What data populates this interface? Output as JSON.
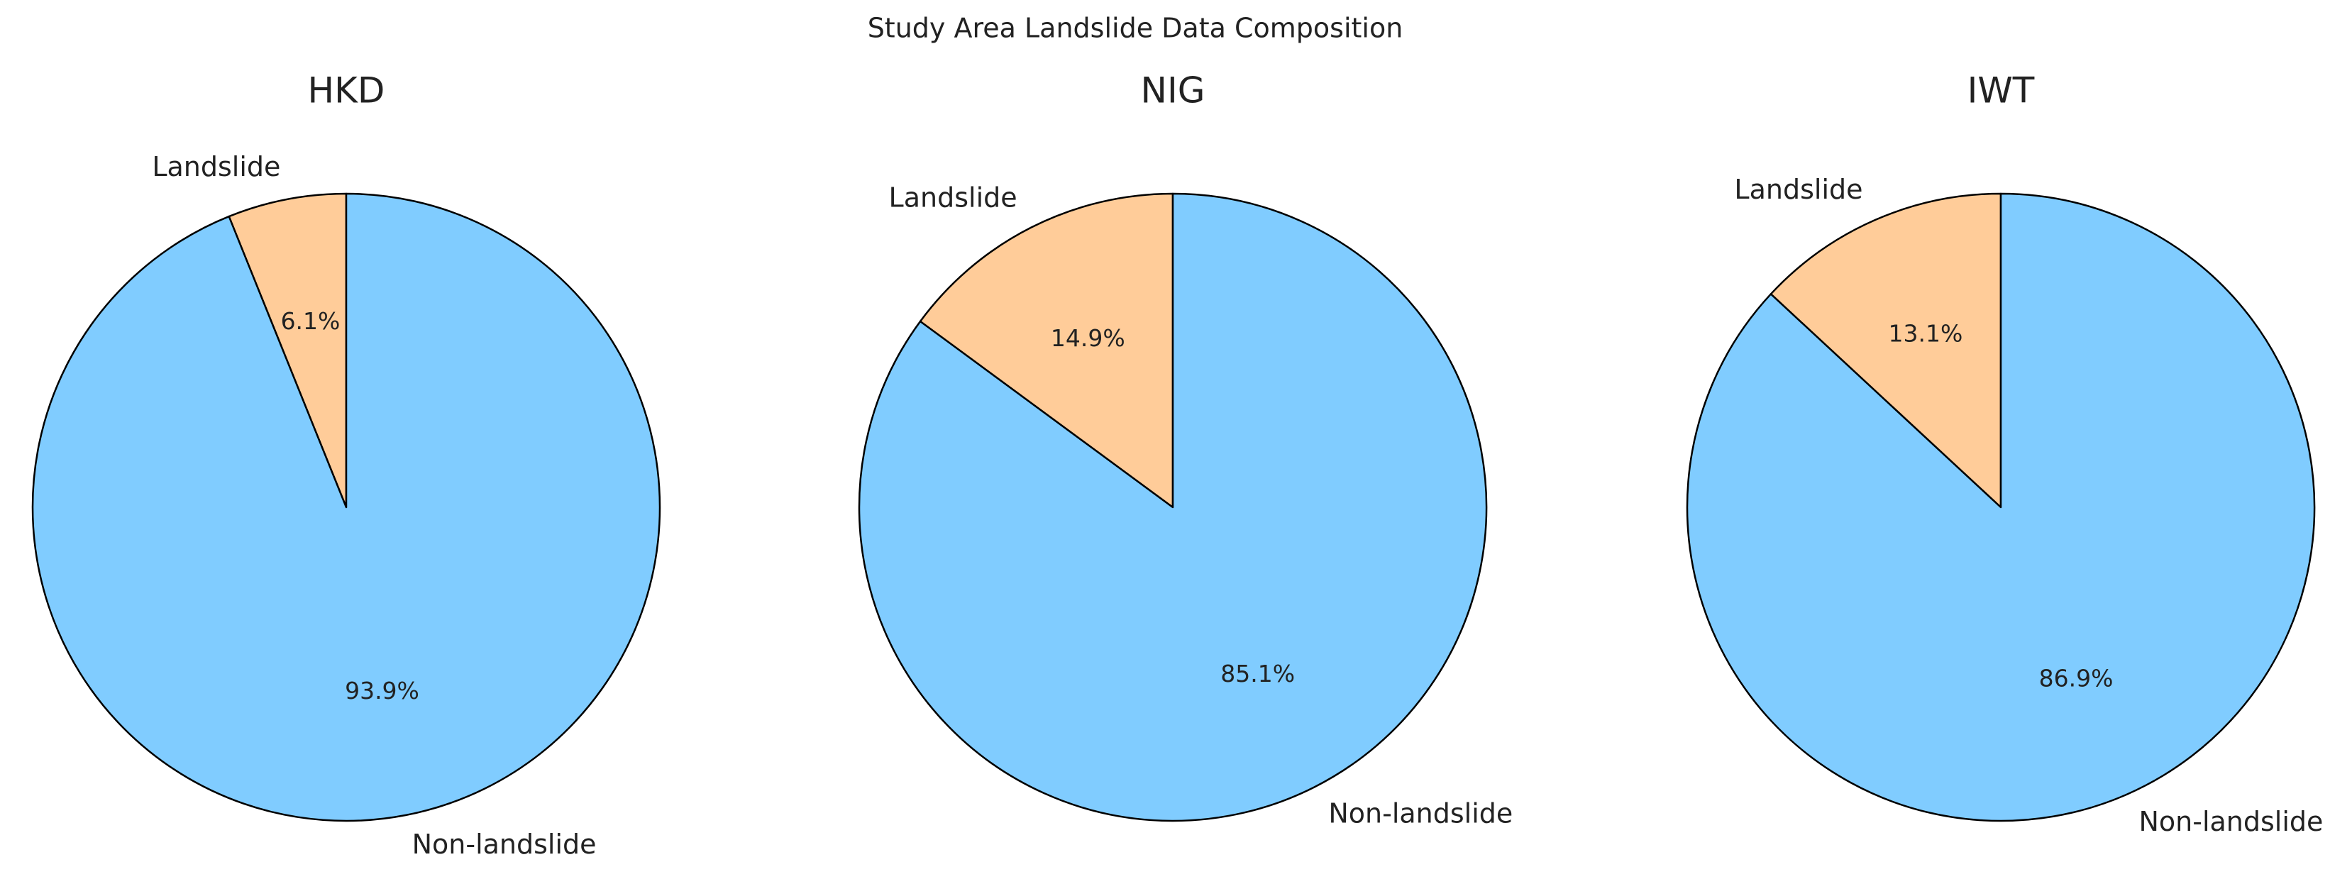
{
  "title": "Study Area Landslide Data Composition",
  "chart_data": [
    {
      "type": "pie",
      "title": "HKD",
      "categories": [
        "Landslide",
        "Non-landslide"
      ],
      "values": [
        6.1,
        93.9
      ],
      "value_labels": [
        "6.1%",
        "93.9%"
      ],
      "colors": [
        "#ffcc99",
        "#80ccff"
      ]
    },
    {
      "type": "pie",
      "title": "NIG",
      "categories": [
        "Landslide",
        "Non-landslide"
      ],
      "values": [
        14.9,
        85.1
      ],
      "value_labels": [
        "14.9%",
        "85.1%"
      ],
      "colors": [
        "#ffcc99",
        "#80ccff"
      ]
    },
    {
      "type": "pie",
      "title": "IWT",
      "categories": [
        "Landslide",
        "Non-landslide"
      ],
      "values": [
        13.1,
        86.9
      ],
      "value_labels": [
        "13.1%",
        "86.9%"
      ],
      "colors": [
        "#ffcc99",
        "#80ccff"
      ]
    }
  ]
}
